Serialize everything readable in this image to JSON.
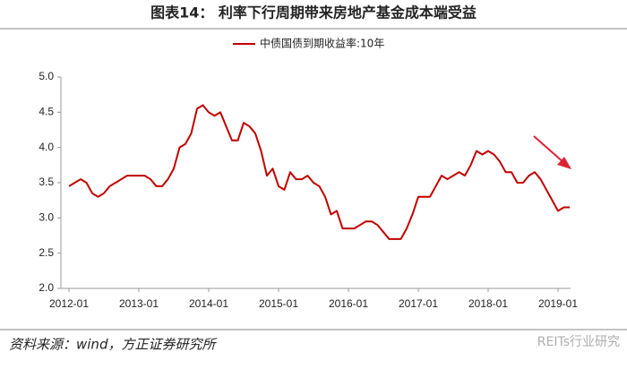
{
  "chart_data": {
    "type": "line",
    "title": "图表14：  利率下行周期带来房地产基金成本端受益",
    "source": "资料来源：wind，方正证券研究所",
    "watermark": "REITs行业研究",
    "x": [
      "2012-01",
      "2012-02",
      "2012-03",
      "2012-04",
      "2012-05",
      "2012-06",
      "2012-07",
      "2012-08",
      "2012-09",
      "2012-10",
      "2012-11",
      "2012-12",
      "2013-01",
      "2013-02",
      "2013-03",
      "2013-04",
      "2013-05",
      "2013-06",
      "2013-07",
      "2013-08",
      "2013-09",
      "2013-10",
      "2013-11",
      "2013-12",
      "2014-01",
      "2014-02",
      "2014-03",
      "2014-04",
      "2014-05",
      "2014-06",
      "2014-07",
      "2014-08",
      "2014-09",
      "2014-10",
      "2014-11",
      "2014-12",
      "2015-01",
      "2015-02",
      "2015-03",
      "2015-04",
      "2015-05",
      "2015-06",
      "2015-07",
      "2015-08",
      "2015-09",
      "2015-10",
      "2015-11",
      "2015-12",
      "2016-01",
      "2016-02",
      "2016-03",
      "2016-04",
      "2016-05",
      "2016-06",
      "2016-07",
      "2016-08",
      "2016-09",
      "2016-10",
      "2016-11",
      "2016-12",
      "2017-01",
      "2017-02",
      "2017-03",
      "2017-04",
      "2017-05",
      "2017-06",
      "2017-07",
      "2017-08",
      "2017-09",
      "2017-10",
      "2017-11",
      "2017-12",
      "2018-01",
      "2018-02",
      "2018-03",
      "2018-04",
      "2018-05",
      "2018-06",
      "2018-07",
      "2018-08",
      "2018-09",
      "2018-10",
      "2018-11",
      "2018-12",
      "2019-01",
      "2019-02",
      "2019-03"
    ],
    "series": [
      {
        "name": "中债国债到期收益率:10年",
        "color": "#c00000",
        "values": [
          3.45,
          3.5,
          3.55,
          3.5,
          3.35,
          3.3,
          3.35,
          3.45,
          3.5,
          3.55,
          3.6,
          3.6,
          3.6,
          3.6,
          3.55,
          3.45,
          3.45,
          3.55,
          3.7,
          4.0,
          4.05,
          4.2,
          4.55,
          4.6,
          4.5,
          4.45,
          4.5,
          4.3,
          4.1,
          4.1,
          4.35,
          4.3,
          4.2,
          3.95,
          3.6,
          3.7,
          3.45,
          3.4,
          3.65,
          3.55,
          3.55,
          3.6,
          3.5,
          3.45,
          3.3,
          3.05,
          3.1,
          2.85,
          2.85,
          2.85,
          2.9,
          2.95,
          2.95,
          2.9,
          2.8,
          2.7,
          2.7,
          2.7,
          2.85,
          3.05,
          3.3,
          3.3,
          3.3,
          3.45,
          3.6,
          3.55,
          3.6,
          3.65,
          3.6,
          3.75,
          3.95,
          3.9,
          3.95,
          3.9,
          3.8,
          3.65,
          3.65,
          3.5,
          3.5,
          3.6,
          3.65,
          3.55,
          3.4,
          3.25,
          3.1,
          3.15,
          3.15
        ]
      }
    ],
    "ylim": [
      2.0,
      5.0
    ],
    "yticks": [
      {
        "value": 2.0,
        "label": "2.0"
      },
      {
        "value": 2.5,
        "label": "2.5"
      },
      {
        "value": 3.0,
        "label": "3.0"
      },
      {
        "value": 3.5,
        "label": "3.5"
      },
      {
        "value": 4.0,
        "label": "4.0"
      },
      {
        "value": 4.5,
        "label": "4.5"
      },
      {
        "value": 5.0,
        "label": "5.0"
      }
    ],
    "xticks": [
      "2012-01",
      "2013-01",
      "2014-01",
      "2015-01",
      "2016-01",
      "2017-01",
      "2018-01",
      "2019-01"
    ],
    "grid": false
  }
}
